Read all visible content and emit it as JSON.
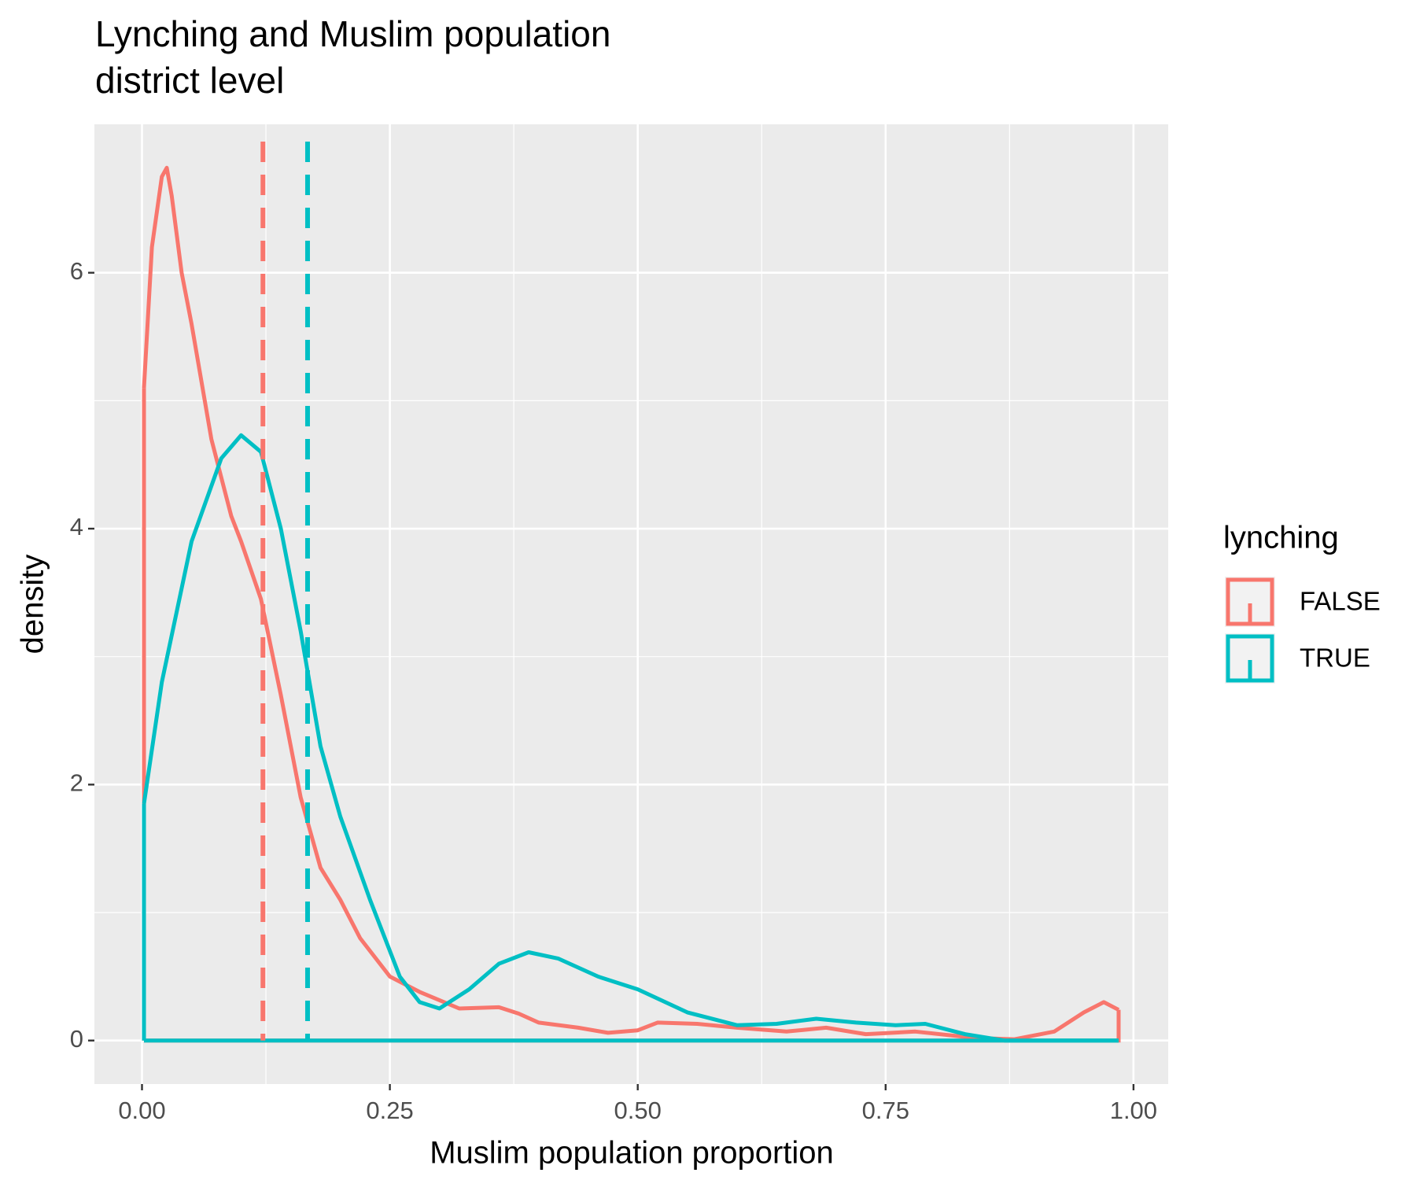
{
  "chart_data": {
    "type": "density",
    "title": "Lynching and Muslim population",
    "subtitle": "district level",
    "x_label": "Muslim population proportion",
    "y_label": "density",
    "legend_title": "lynching",
    "legend_position": "right",
    "grid": true,
    "xlim": [
      -0.048,
      1.035
    ],
    "ylim": [
      -0.34,
      7.16
    ],
    "xticks": [
      {
        "value": 0,
        "label": "0.00"
      },
      {
        "value": 0.25,
        "label": "0.25"
      },
      {
        "value": 0.5,
        "label": "0.50"
      },
      {
        "value": 0.75,
        "label": "0.75"
      },
      {
        "value": 1,
        "label": "1.00"
      }
    ],
    "yticks": [
      0,
      2,
      4,
      6
    ],
    "series": [
      {
        "name": "FALSE",
        "color": "#F8766D",
        "mean": 0.122,
        "x": [
          0.002,
          0.01,
          0.02,
          0.025,
          0.03,
          0.04,
          0.05,
          0.07,
          0.09,
          0.1,
          0.12,
          0.14,
          0.16,
          0.18,
          0.2,
          0.22,
          0.25,
          0.28,
          0.32,
          0.36,
          0.38,
          0.4,
          0.44,
          0.47,
          0.5,
          0.52,
          0.56,
          0.6,
          0.65,
          0.69,
          0.73,
          0.78,
          0.84,
          0.88,
          0.92,
          0.95,
          0.97,
          0.985
        ],
        "values": [
          5.1,
          6.2,
          6.75,
          6.82,
          6.6,
          6.0,
          5.6,
          4.7,
          4.1,
          3.9,
          3.45,
          2.7,
          1.9,
          1.35,
          1.1,
          0.8,
          0.5,
          0.38,
          0.25,
          0.26,
          0.21,
          0.14,
          0.1,
          0.06,
          0.08,
          0.14,
          0.13,
          0.1,
          0.07,
          0.1,
          0.05,
          0.07,
          0.02,
          0.01,
          0.07,
          0.22,
          0.3,
          0.24
        ]
      },
      {
        "name": "TRUE",
        "color": "#00BFC4",
        "mean": 0.167,
        "x": [
          0.002,
          0.02,
          0.05,
          0.08,
          0.1,
          0.12,
          0.14,
          0.16,
          0.18,
          0.2,
          0.23,
          0.26,
          0.28,
          0.3,
          0.33,
          0.36,
          0.39,
          0.42,
          0.46,
          0.5,
          0.55,
          0.6,
          0.64,
          0.68,
          0.72,
          0.76,
          0.79,
          0.83,
          0.87,
          0.93,
          0.985
        ],
        "values": [
          1.85,
          2.8,
          3.9,
          4.55,
          4.73,
          4.6,
          4.0,
          3.2,
          2.3,
          1.75,
          1.1,
          0.5,
          0.3,
          0.25,
          0.4,
          0.6,
          0.69,
          0.64,
          0.5,
          0.4,
          0.22,
          0.12,
          0.13,
          0.17,
          0.14,
          0.12,
          0.13,
          0.05,
          0.0,
          0.0,
          0.0
        ]
      }
    ]
  }
}
